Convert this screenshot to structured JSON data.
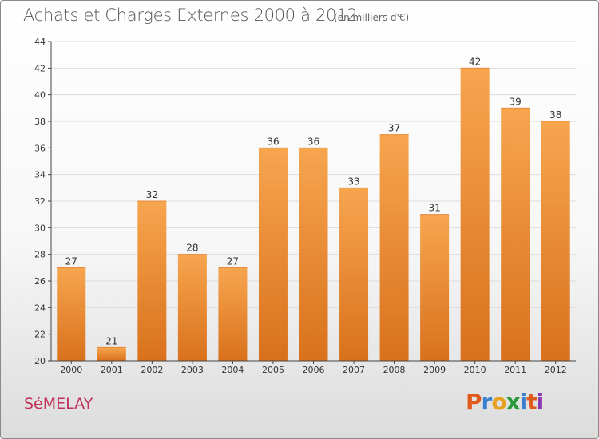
{
  "header": {
    "title": "Achats et Charges Externes 2000 à 2012",
    "subtitle": "(en milliers d'€)"
  },
  "footer": {
    "commune": "SéMELAY",
    "logo_letters": [
      "P",
      "r",
      "o",
      "x",
      "i",
      "t",
      "i"
    ],
    "logo_colors": [
      "#e05a1c",
      "#3a7fd0",
      "#e8a020",
      "#2a9a3a",
      "#3a7fd0",
      "#e05a1c",
      "#8a3ab0"
    ]
  },
  "chart_data": {
    "type": "bar",
    "categories": [
      "2000",
      "2001",
      "2002",
      "2003",
      "2004",
      "2005",
      "2006",
      "2007",
      "2008",
      "2009",
      "2010",
      "2011",
      "2012"
    ],
    "values": [
      27,
      21,
      32,
      28,
      27,
      36,
      36,
      33,
      37,
      31,
      42,
      39,
      38
    ],
    "title": "Achats et Charges Externes 2000 à 2012",
    "subtitle": "(en milliers d'€)",
    "xlabel": "",
    "ylabel": "",
    "ylim": [
      20,
      44
    ],
    "yticks": [
      20,
      22,
      24,
      26,
      28,
      30,
      32,
      34,
      36,
      38,
      40,
      42,
      44
    ],
    "grid": true,
    "colors": {
      "bar_top": "#f7a54f",
      "bar_bottom": "#d9711c",
      "grid": "#dddddd",
      "axis": "#444444"
    }
  }
}
